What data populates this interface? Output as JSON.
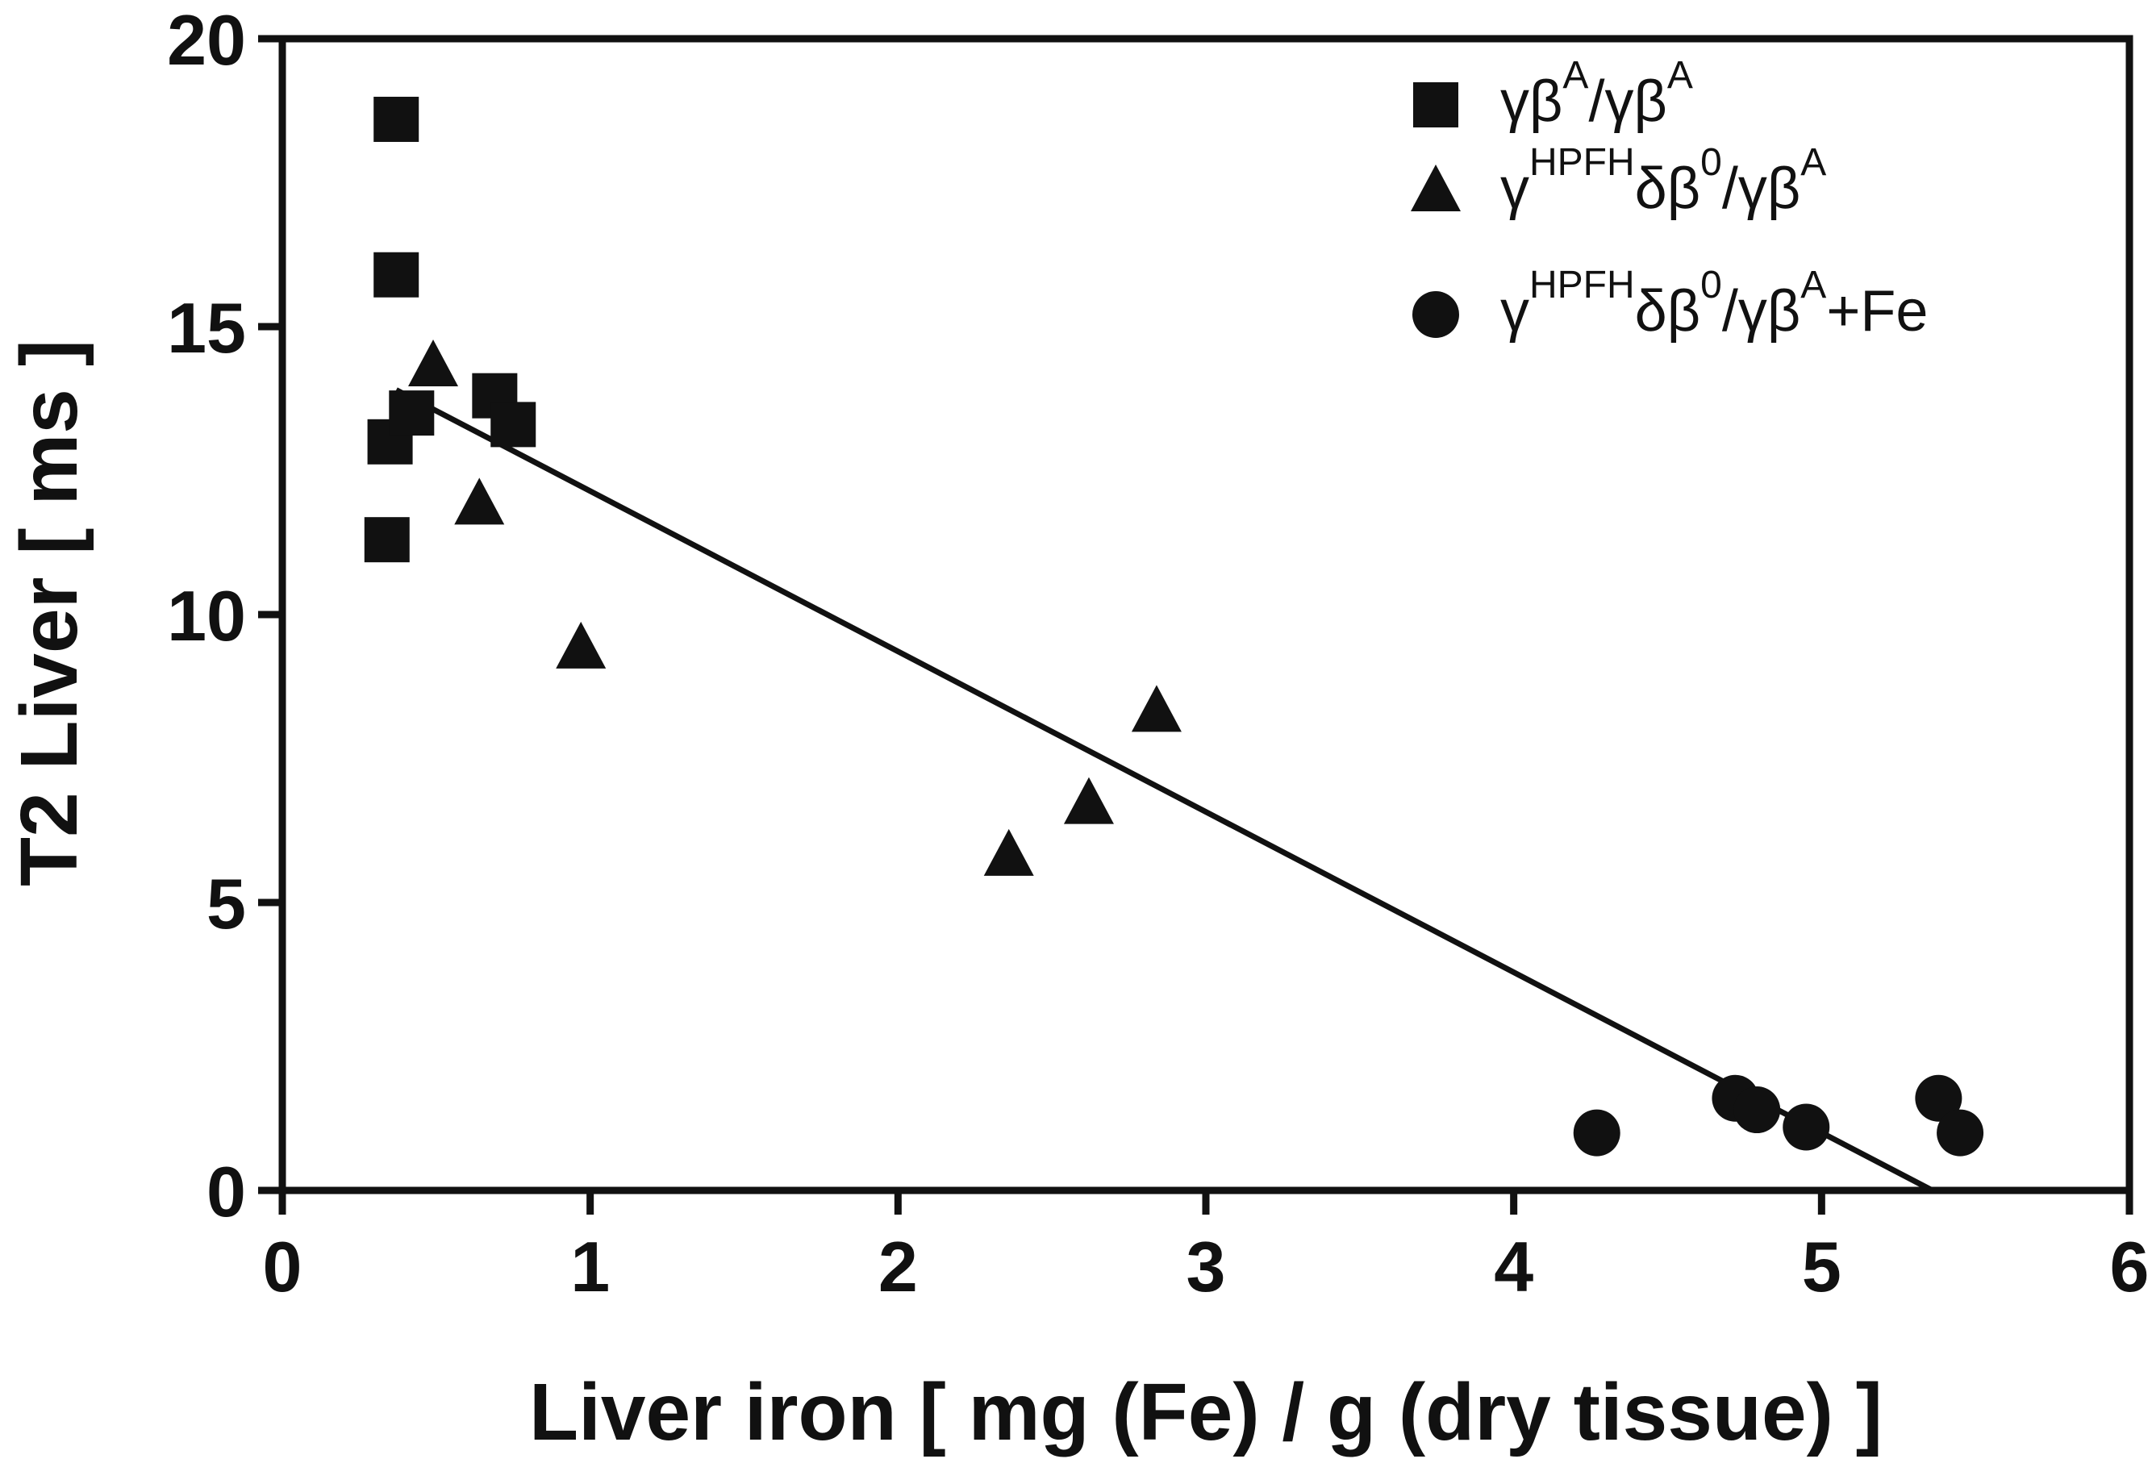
{
  "chart_data": {
    "type": "scatter",
    "title": "",
    "xlabel": "Liver iron [ mg (Fe) / g (dry tissue) ]",
    "ylabel": "T2 Liver [ ms ]",
    "xlim": [
      0,
      6
    ],
    "ylim": [
      0,
      20
    ],
    "xticks": [
      "0",
      "1",
      "2",
      "3",
      "4",
      "5",
      "6"
    ],
    "yticks": [
      "0",
      "5",
      "10",
      "15",
      "20"
    ],
    "grid": false,
    "legend_position": "top-right",
    "series": [
      {
        "name": "γβA/γβA",
        "legend": [
          {
            "t": "γβ",
            "sup": false
          },
          {
            "t": "A",
            "sup": true
          },
          {
            "t": "/γβ",
            "sup": false
          },
          {
            "t": "A",
            "sup": true
          }
        ],
        "marker": "square",
        "points": [
          [
            0.37,
            18.6
          ],
          [
            0.37,
            15.9
          ],
          [
            0.35,
            13.0
          ],
          [
            0.34,
            11.3
          ],
          [
            0.42,
            13.5
          ],
          [
            0.69,
            13.8
          ],
          [
            0.75,
            13.3
          ]
        ]
      },
      {
        "name": "γHPFHδβ0/γβA",
        "legend": [
          {
            "t": "γ",
            "sup": false
          },
          {
            "t": "HPFH",
            "sup": true
          },
          {
            "t": "δβ",
            "sup": false
          },
          {
            "t": "0",
            "sup": true
          },
          {
            "t": "/γβ",
            "sup": false
          },
          {
            "t": "A",
            "sup": true
          }
        ],
        "marker": "triangle",
        "points": [
          [
            0.49,
            14.3
          ],
          [
            0.64,
            11.9
          ],
          [
            0.97,
            9.4
          ],
          [
            2.36,
            5.8
          ],
          [
            2.62,
            6.7
          ],
          [
            2.84,
            8.3
          ]
        ]
      },
      {
        "name": "γHPFHδβ0/γβA+Fe",
        "legend": [
          {
            "t": "γ",
            "sup": false
          },
          {
            "t": "HPFH",
            "sup": true
          },
          {
            "t": "δβ",
            "sup": false
          },
          {
            "t": "0",
            "sup": true
          },
          {
            "t": "/γβ",
            "sup": false
          },
          {
            "t": "A",
            "sup": true
          },
          {
            "t": "+Fe",
            "sup": false
          }
        ],
        "marker": "circle",
        "points": [
          [
            4.27,
            1.0
          ],
          [
            4.72,
            1.6
          ],
          [
            4.79,
            1.4
          ],
          [
            4.95,
            1.1
          ],
          [
            5.38,
            1.6
          ],
          [
            5.45,
            1.0
          ]
        ]
      }
    ],
    "fit_line": {
      "x": [
        0.37,
        5.36
      ],
      "y": [
        13.9,
        0.0
      ]
    }
  }
}
